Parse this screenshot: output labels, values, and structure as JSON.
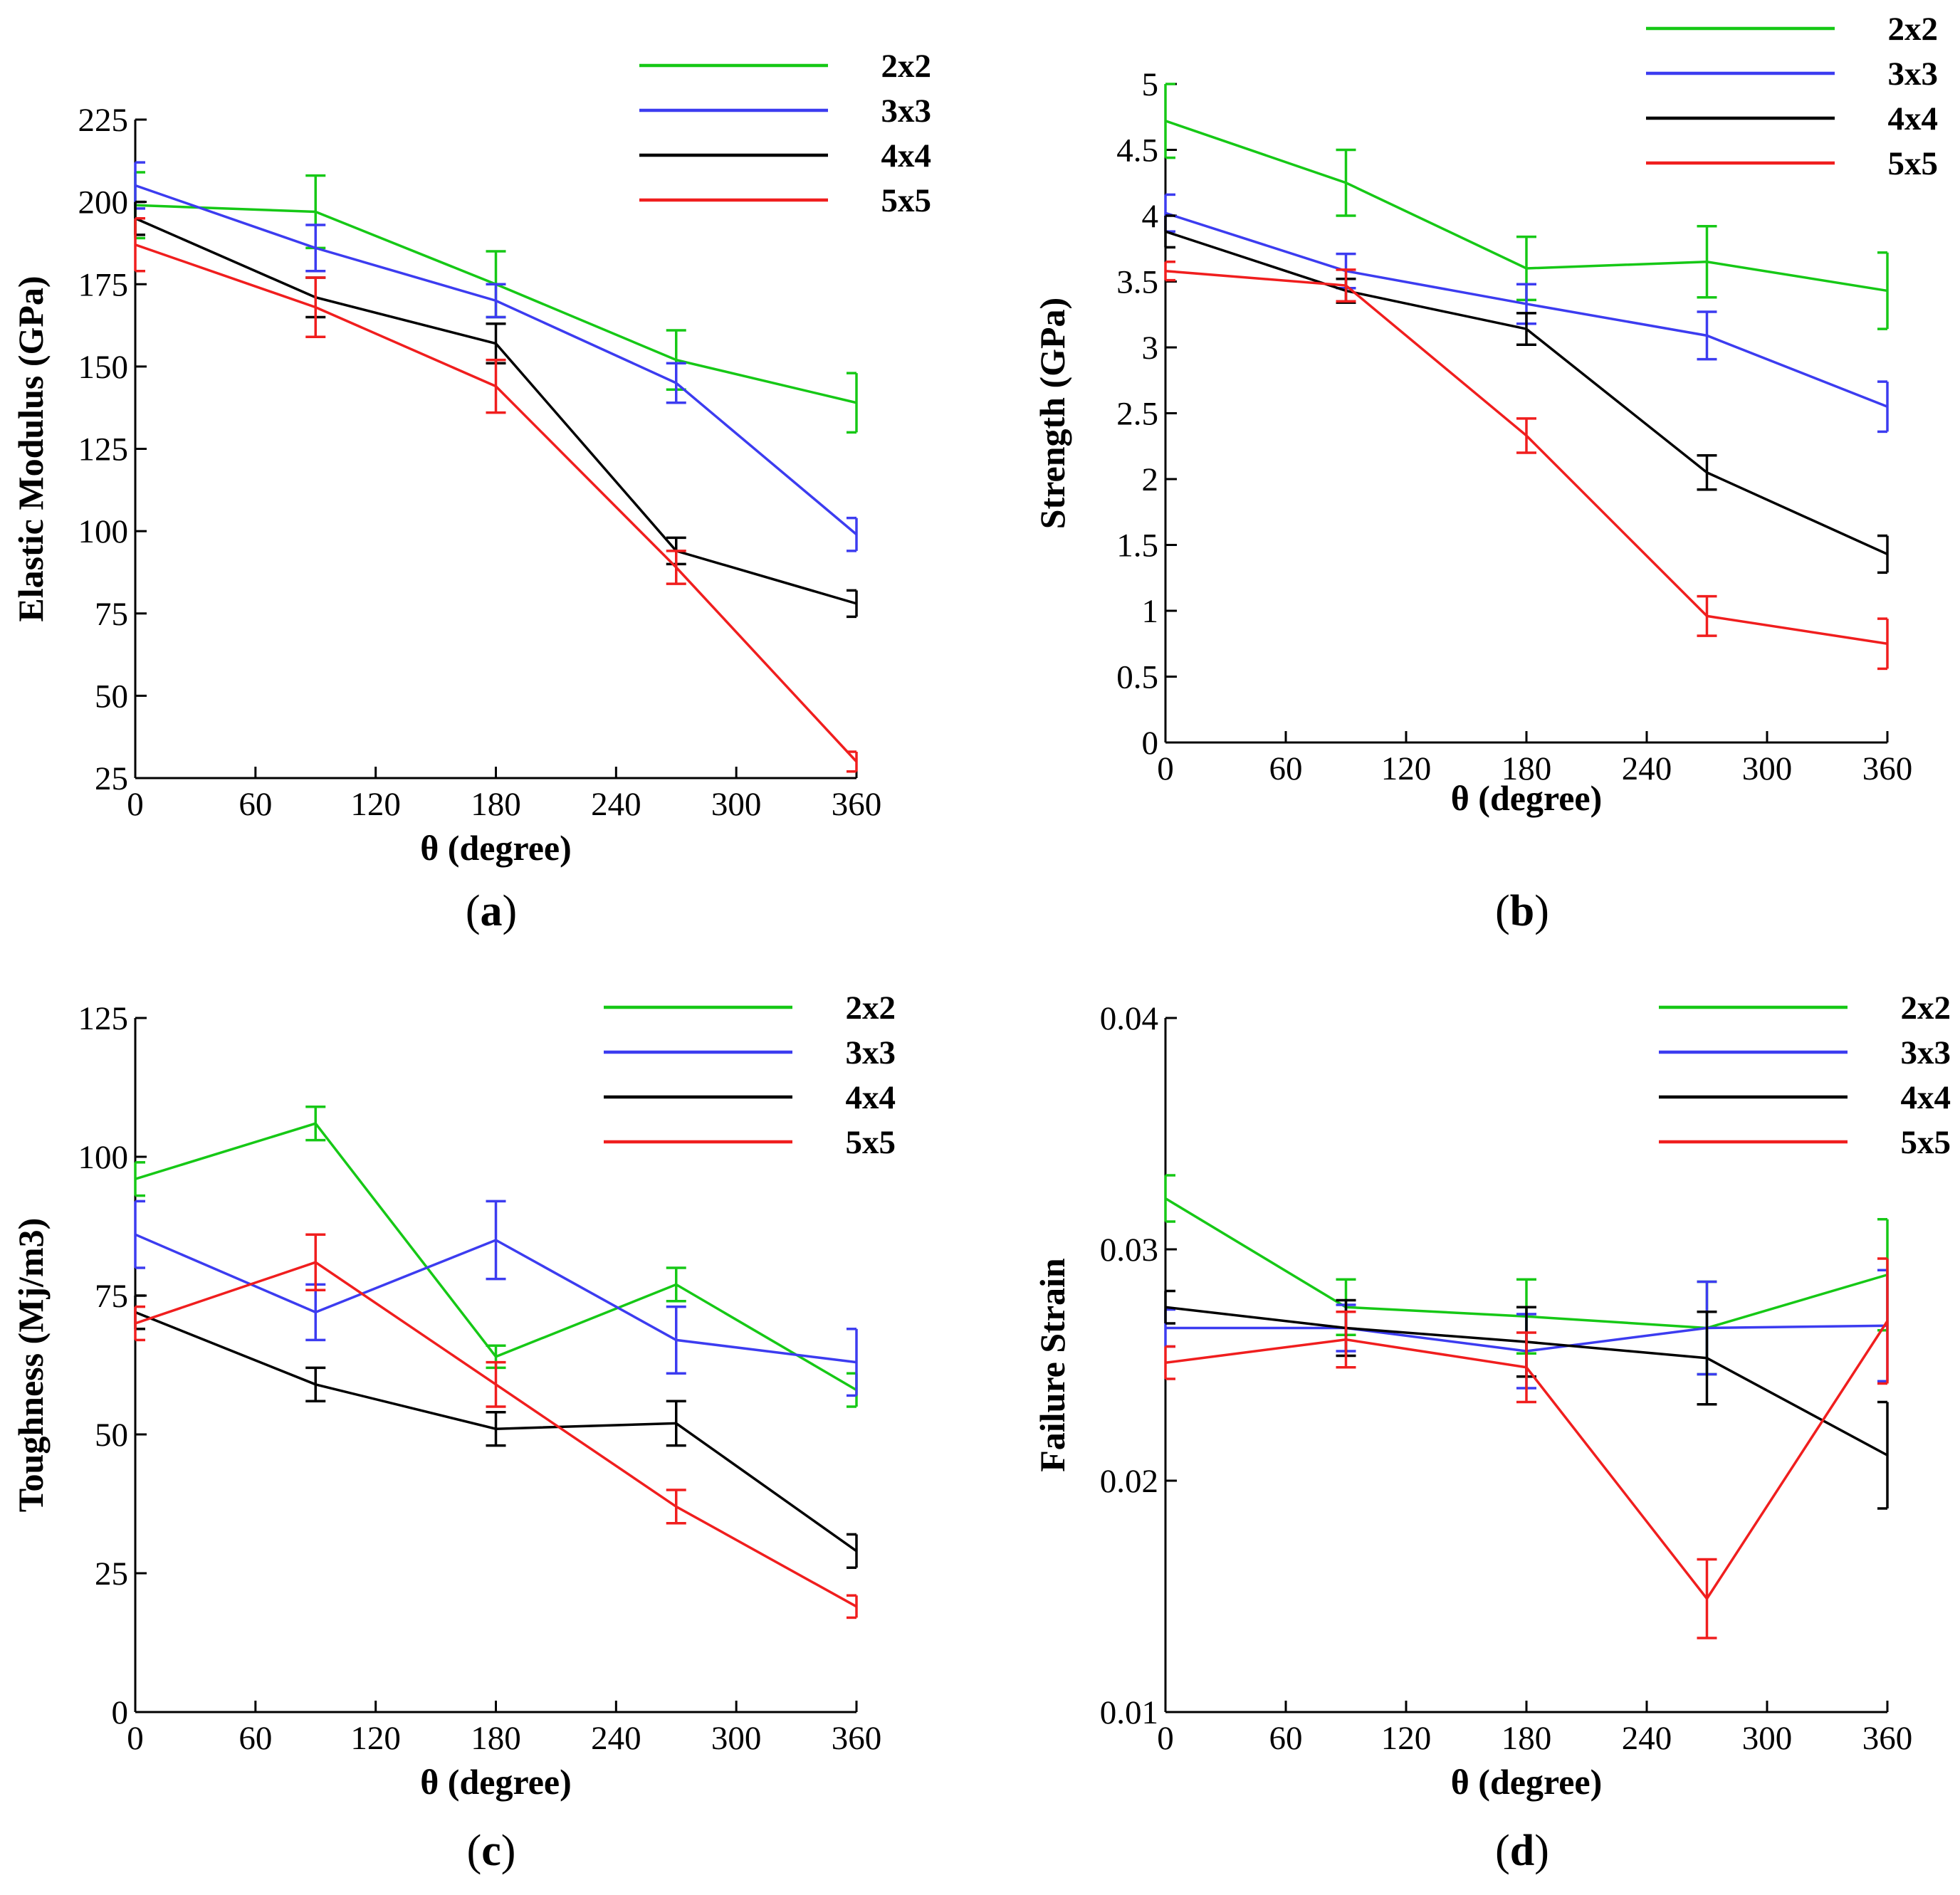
{
  "figure": {
    "panel_labels": [
      {
        "open": "(",
        "letter": "a",
        "close": ")"
      },
      {
        "open": "(",
        "letter": "b",
        "close": ")"
      },
      {
        "open": "(",
        "letter": "c",
        "close": ")"
      },
      {
        "open": "(",
        "letter": "d",
        "close": ")"
      }
    ]
  },
  "colors": {
    "2x2": "#16c816",
    "3x3": "#3c3cf0",
    "4x4": "#000000",
    "5x5": "#f01e1e"
  },
  "chart_data": [
    {
      "type": "line",
      "title": "",
      "panel": "(a)",
      "xlabel": "θ  (degree)",
      "ylabel": "Elastic Modulus (GPa)",
      "xlim": [
        0,
        360
      ],
      "ylim": [
        25,
        225
      ],
      "xticks": [
        0,
        60,
        120,
        180,
        240,
        300,
        360
      ],
      "xtick_labels": [
        "0",
        "60",
        "120",
        "180",
        "240",
        "300",
        "360"
      ],
      "yticks": [
        25,
        50,
        75,
        100,
        125,
        150,
        175,
        200,
        225
      ],
      "ytick_labels": [
        "25",
        "50",
        "75",
        "100",
        "125",
        "150",
        "175",
        "200",
        "225"
      ],
      "legend": [
        "2x2",
        "3x3",
        "4x4",
        "5x5"
      ],
      "legend_position": "top-right",
      "x": [
        0,
        90,
        180,
        270,
        360
      ],
      "series": [
        {
          "name": "2x2",
          "values": [
            199,
            197,
            175,
            152,
            139
          ],
          "errors": [
            10,
            11,
            10,
            9,
            9
          ]
        },
        {
          "name": "3x3",
          "values": [
            205,
            186,
            170,
            145,
            99
          ],
          "errors": [
            7,
            7,
            5,
            6,
            5
          ]
        },
        {
          "name": "4x4",
          "values": [
            195,
            171,
            157,
            94,
            78
          ],
          "errors": [
            5,
            6,
            6,
            4,
            4
          ]
        },
        {
          "name": "5x5",
          "values": [
            187,
            168,
            144,
            89,
            30
          ],
          "errors": [
            8,
            9,
            8,
            5,
            3
          ]
        }
      ]
    },
    {
      "type": "line",
      "title": "",
      "panel": "(b)",
      "xlabel": "θ  (degree)",
      "ylabel": "Strength (GPa)",
      "xlim": [
        0,
        360
      ],
      "ylim": [
        0,
        5
      ],
      "xticks": [
        0,
        60,
        120,
        180,
        240,
        300,
        360
      ],
      "xtick_labels": [
        "0",
        "60",
        "120",
        "180",
        "240",
        "300",
        "360"
      ],
      "yticks": [
        0,
        0.5,
        1,
        1.5,
        2,
        2.5,
        3,
        3.5,
        4,
        4.5,
        5
      ],
      "ytick_labels": [
        "0",
        "0.5",
        "1",
        "1.5",
        "2",
        "2.5",
        "3",
        "3.5",
        "4",
        "4.5",
        "5"
      ],
      "legend": [
        "2x2",
        "3x3",
        "4x4",
        "5x5"
      ],
      "legend_position": "top-right",
      "x": [
        0,
        90,
        180,
        270,
        360
      ],
      "series": [
        {
          "name": "2x2",
          "values": [
            4.72,
            4.25,
            3.6,
            3.65,
            3.43
          ],
          "errors": [
            0.28,
            0.25,
            0.24,
            0.27,
            0.29
          ]
        },
        {
          "name": "3x3",
          "values": [
            4.02,
            3.58,
            3.33,
            3.09,
            2.55
          ],
          "errors": [
            0.14,
            0.13,
            0.15,
            0.18,
            0.19
          ]
        },
        {
          "name": "4x4",
          "values": [
            3.88,
            3.43,
            3.14,
            2.05,
            1.43
          ],
          "errors": [
            0.12,
            0.09,
            0.12,
            0.13,
            0.14
          ]
        },
        {
          "name": "5x5",
          "values": [
            3.58,
            3.47,
            2.33,
            0.96,
            0.75
          ],
          "errors": [
            0.07,
            0.12,
            0.13,
            0.15,
            0.19
          ]
        }
      ]
    },
    {
      "type": "line",
      "title": "",
      "panel": "(c)",
      "xlabel": "θ  (degree)",
      "ylabel": "Toughness (Mj/m3)",
      "xlim": [
        0,
        360
      ],
      "ylim": [
        0,
        125
      ],
      "xticks": [
        0,
        60,
        120,
        180,
        240,
        300,
        360
      ],
      "xtick_labels": [
        "0",
        "60",
        "120",
        "180",
        "240",
        "300",
        "360"
      ],
      "yticks": [
        0,
        25,
        50,
        75,
        100,
        125
      ],
      "ytick_labels": [
        "0",
        "25",
        "50",
        "75",
        "100",
        "125"
      ],
      "legend": [
        "2x2",
        "3x3",
        "4x4",
        "5x5"
      ],
      "legend_position": "top-right",
      "x": [
        0,
        90,
        180,
        270,
        360
      ],
      "series": [
        {
          "name": "2x2",
          "values": [
            96,
            106,
            64,
            77,
            58
          ],
          "errors": [
            3,
            3,
            2,
            3,
            3
          ]
        },
        {
          "name": "3x3",
          "values": [
            86,
            72,
            85,
            67,
            63
          ],
          "errors": [
            6,
            5,
            7,
            6,
            6
          ]
        },
        {
          "name": "4x4",
          "values": [
            72,
            59,
            51,
            52,
            29
          ],
          "errors": [
            3,
            3,
            3,
            4,
            3
          ]
        },
        {
          "name": "5x5",
          "values": [
            70,
            81,
            59,
            37,
            19
          ],
          "errors": [
            3,
            5,
            4,
            3,
            2
          ]
        }
      ]
    },
    {
      "type": "line",
      "title": "",
      "panel": "(d)",
      "xlabel": "θ  (degree)",
      "ylabel": "Failure Strain",
      "xlim": [
        0,
        360
      ],
      "ylim": [
        0.01,
        0.04
      ],
      "xticks": [
        0,
        60,
        120,
        180,
        240,
        300,
        360
      ],
      "xtick_labels": [
        "0",
        "60",
        "120",
        "180",
        "240",
        "300",
        "360"
      ],
      "yticks": [
        0.01,
        0.02,
        0.03,
        0.04
      ],
      "ytick_labels": [
        "0.01",
        "0.02",
        "0.03",
        "0.04"
      ],
      "legend": [
        "2x2",
        "3x3",
        "4x4",
        "5x5"
      ],
      "legend_position": "top-right",
      "x": [
        0,
        90,
        180,
        270,
        360
      ],
      "series": [
        {
          "name": "2x2",
          "values": [
            0.0322,
            0.0275,
            0.0271,
            0.0266,
            0.0289
          ],
          "errors": [
            0.001,
            0.0012,
            0.0016,
            0.002,
            0.0024
          ]
        },
        {
          "name": "3x3",
          "values": [
            0.0266,
            0.0266,
            0.0256,
            0.0266,
            0.0267
          ],
          "errors": [
            0.0008,
            0.001,
            0.0016,
            0.002,
            0.0024
          ]
        },
        {
          "name": "4x4",
          "values": [
            0.0275,
            0.0266,
            0.026,
            0.0253,
            0.0211
          ],
          "errors": [
            0.0007,
            0.0012,
            0.0015,
            0.002,
            0.0023
          ]
        },
        {
          "name": "5x5",
          "values": [
            0.0251,
            0.0261,
            0.0249,
            0.0149,
            0.0269
          ],
          "errors": [
            0.0007,
            0.0012,
            0.0015,
            0.0017,
            0.0027
          ]
        }
      ]
    }
  ]
}
